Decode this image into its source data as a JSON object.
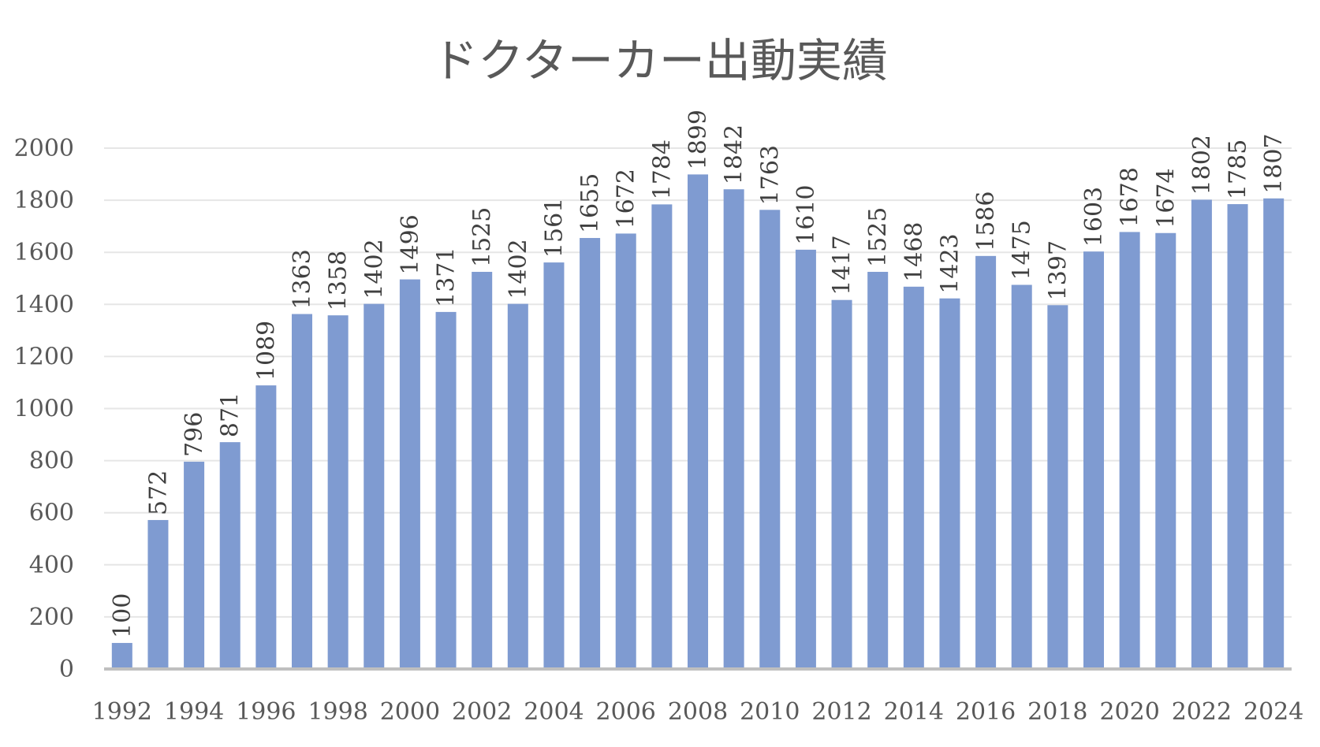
{
  "chart_data": {
    "type": "bar",
    "title": "ドクターカー出動実績",
    "xlabel": "",
    "ylabel": "",
    "ylim": [
      0,
      2000
    ],
    "yticks": [
      0,
      200,
      400,
      600,
      800,
      1000,
      1200,
      1400,
      1600,
      1800,
      2000
    ],
    "grid": true,
    "legend": "none",
    "bar_color": "#7f9bd1",
    "categories": [
      "1992",
      "1993",
      "1994",
      "1995",
      "1996",
      "1997",
      "1998",
      "1999",
      "2000",
      "2001",
      "2002",
      "2003",
      "2004",
      "2005",
      "2006",
      "2007",
      "2008",
      "2009",
      "2010",
      "2011",
      "2012",
      "2013",
      "2014",
      "2015",
      "2016",
      "2017",
      "2018",
      "2019",
      "2020",
      "2021",
      "2022",
      "2023",
      "2024"
    ],
    "xtick_labels": [
      "1992",
      "1994",
      "1996",
      "1998",
      "2000",
      "2002",
      "2004",
      "2006",
      "2008",
      "2010",
      "2012",
      "2014",
      "2016",
      "2018",
      "2020",
      "2022",
      "2024"
    ],
    "values": [
      100,
      572,
      796,
      871,
      1089,
      1363,
      1358,
      1402,
      1496,
      1371,
      1525,
      1402,
      1561,
      1655,
      1672,
      1784,
      1899,
      1842,
      1763,
      1610,
      1417,
      1525,
      1468,
      1423,
      1586,
      1475,
      1397,
      1603,
      1678,
      1674,
      1802,
      1785,
      1807
    ]
  }
}
